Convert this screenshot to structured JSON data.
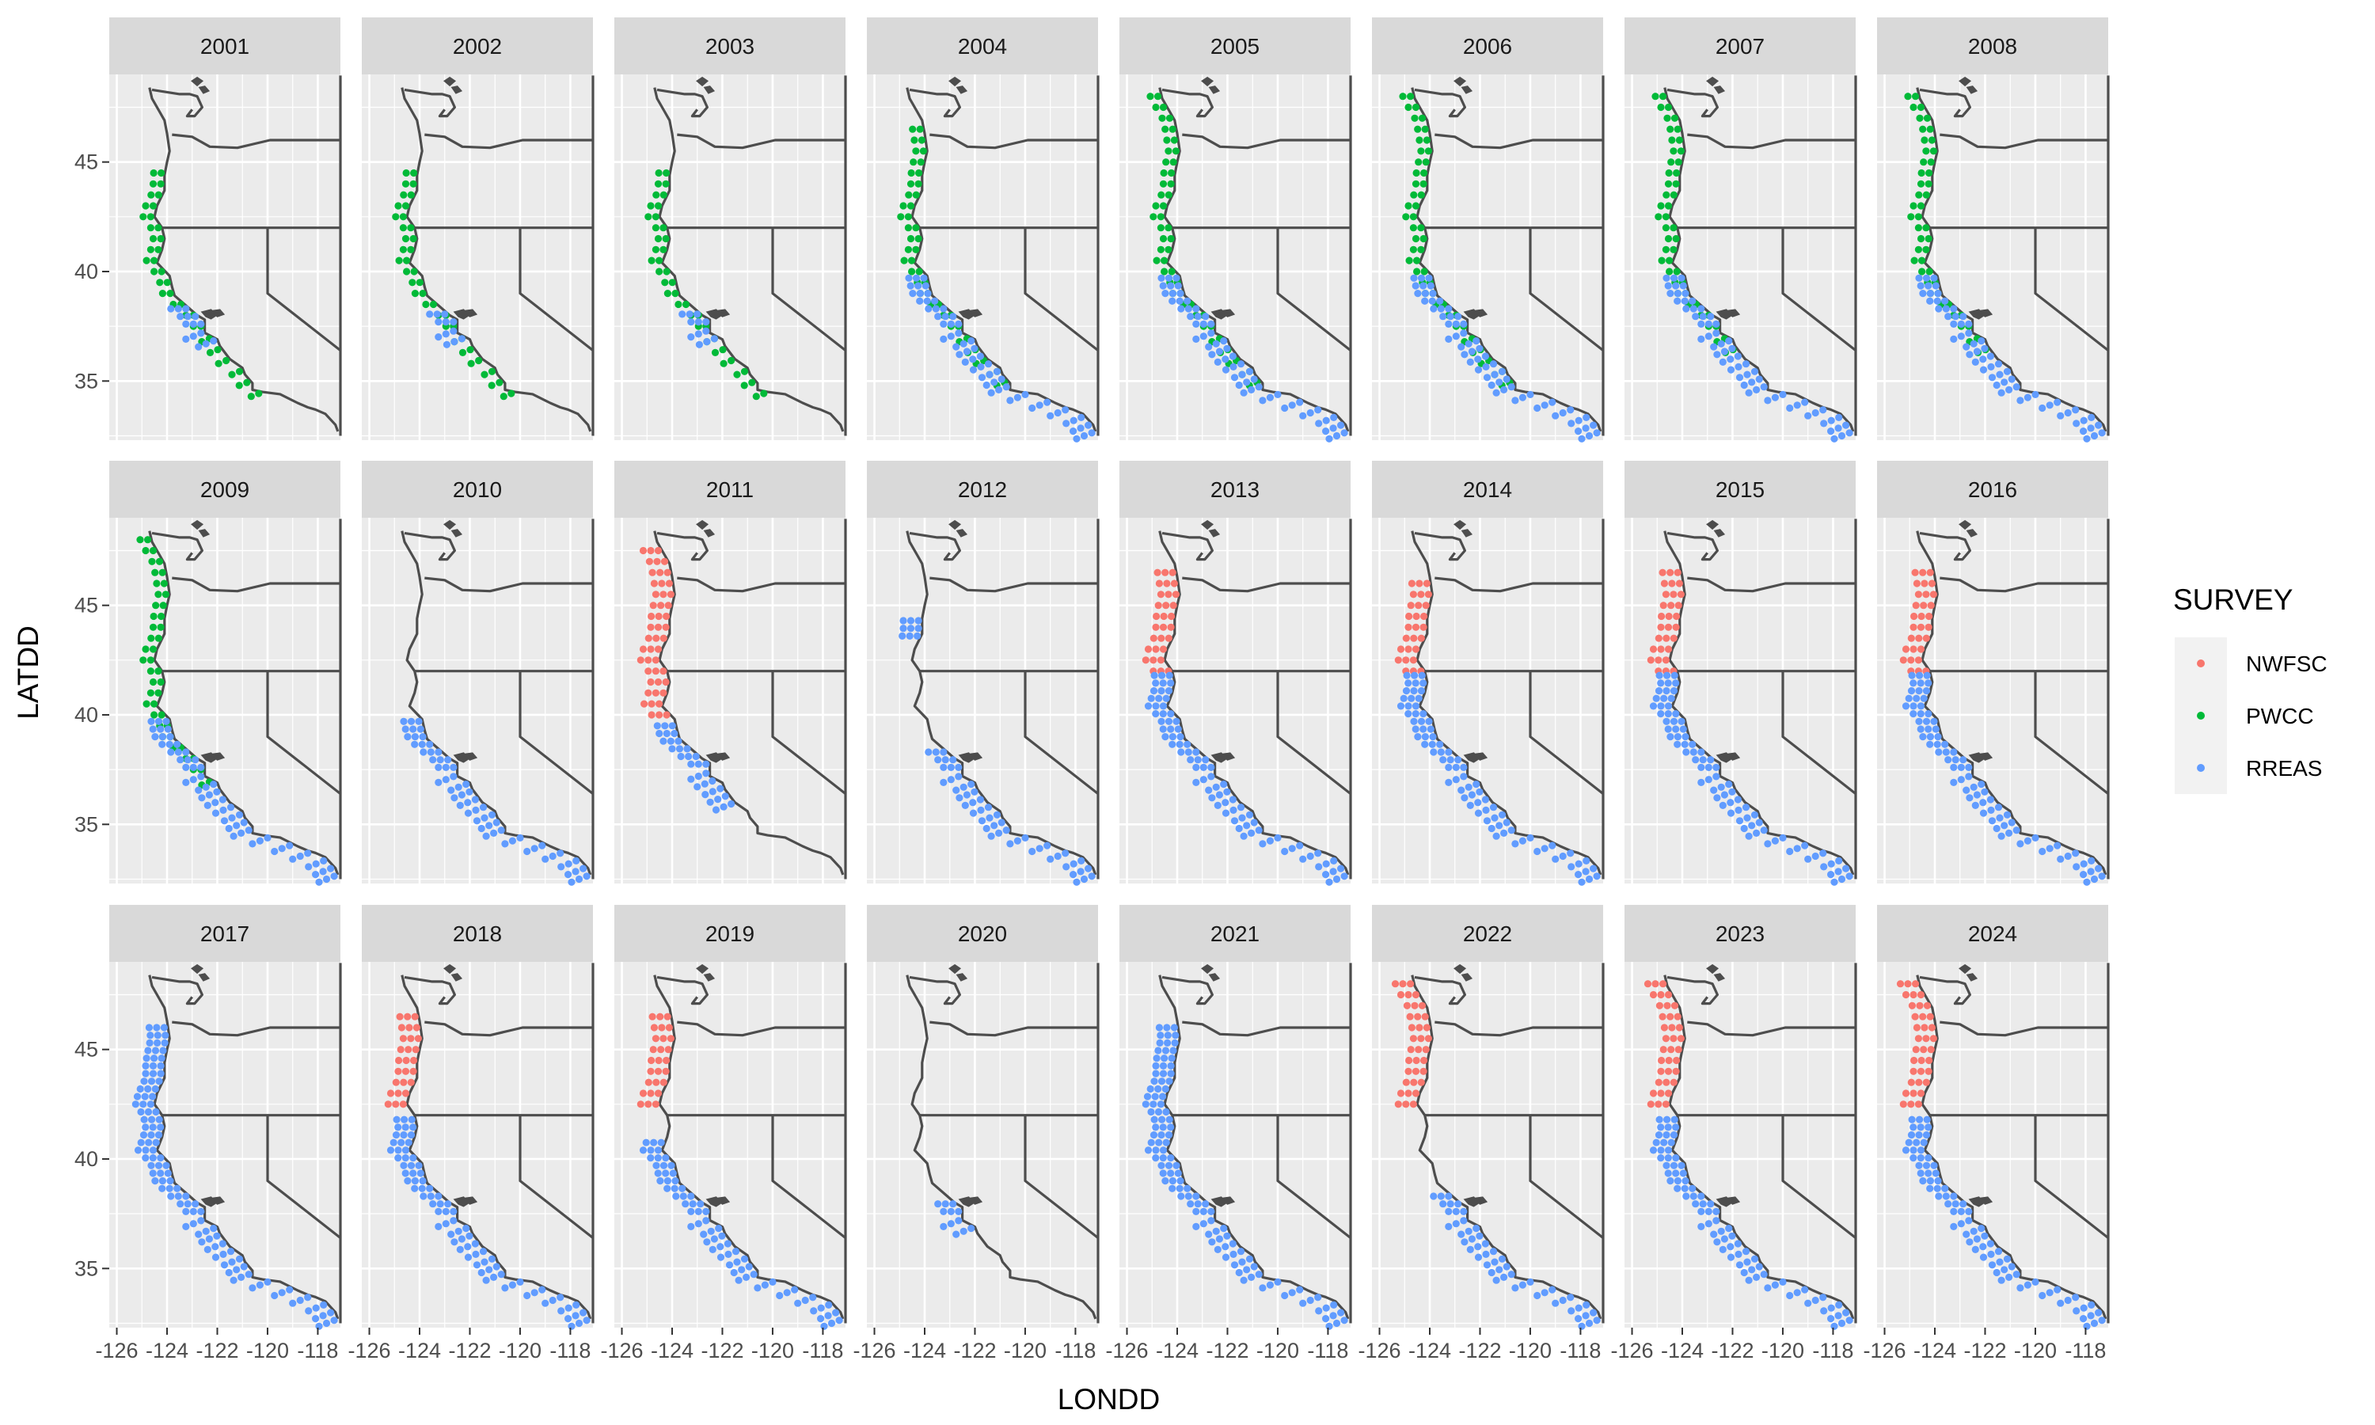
{
  "chart_data": {
    "type": "scatter",
    "facet_by": "year",
    "facets": [
      "2001",
      "2002",
      "2003",
      "2004",
      "2005",
      "2006",
      "2007",
      "2008",
      "2009",
      "2010",
      "2011",
      "2012",
      "2013",
      "2014",
      "2015",
      "2016",
      "2017",
      "2018",
      "2019",
      "2020",
      "2021",
      "2022",
      "2023",
      "2024"
    ],
    "facet_layout": {
      "columns": 8,
      "rows": 3
    },
    "xlabel": "LONDD",
    "ylabel": "LATDD",
    "xlim": [
      -126.3,
      -117.1
    ],
    "ylim": [
      32.3,
      49.0
    ],
    "x_ticks": [
      -126,
      -124,
      -122,
      -120,
      -118
    ],
    "x_tick_labels": [
      "-126",
      "-124",
      "-122",
      "-120",
      "-118"
    ],
    "y_ticks": [
      35,
      40,
      45
    ],
    "y_tick_labels": [
      "35",
      "40",
      "45"
    ],
    "grid": true,
    "legend": {
      "title": "SURVEY",
      "placement": "right",
      "entries": [
        {
          "name": "NWFSC",
          "color": "#F8766D"
        },
        {
          "name": "PWCC",
          "color": "#00BA38"
        },
        {
          "name": "RREAS",
          "color": "#619CFF"
        }
      ]
    },
    "colors": {
      "panel_bg": "#EBEBEB",
      "strip_bg": "#D9D9D9",
      "grid": "#FFFFFF",
      "coastline": "#4D4D4D",
      "islands": "#4D4D4D"
    },
    "coverage": {
      "2001": {
        "PWCC": [
          [
            34.5,
            44.7
          ]
        ],
        "RREAS": [
          [
            36.9,
            38.3
          ]
        ]
      },
      "2002": {
        "PWCC": [
          [
            34.5,
            44.7
          ]
        ],
        "RREAS": [
          [
            37.0,
            38.3
          ]
        ]
      },
      "2003": {
        "PWCC": [
          [
            34.5,
            44.7
          ]
        ],
        "RREAS": [
          [
            37.0,
            38.3
          ]
        ]
      },
      "2004": {
        "PWCC": [
          [
            35.0,
            46.6
          ]
        ],
        "RREAS": [
          [
            32.7,
            39.9
          ]
        ]
      },
      "2005": {
        "PWCC": [
          [
            35.0,
            48.2
          ]
        ],
        "RREAS": [
          [
            32.7,
            39.9
          ]
        ]
      },
      "2006": {
        "PWCC": [
          [
            35.0,
            48.2
          ]
        ],
        "RREAS": [
          [
            32.7,
            39.9
          ]
        ]
      },
      "2007": {
        "PWCC": [
          [
            36.5,
            48.2
          ]
        ],
        "RREAS": [
          [
            32.7,
            39.9
          ]
        ]
      },
      "2008": {
        "PWCC": [
          [
            36.5,
            48.2
          ]
        ],
        "RREAS": [
          [
            32.7,
            39.9
          ]
        ]
      },
      "2009": {
        "PWCC": [
          [
            37.0,
            48.2
          ]
        ],
        "RREAS": [
          [
            32.7,
            39.9
          ]
        ]
      },
      "2010": {
        "RREAS": [
          [
            32.7,
            39.9
          ]
        ]
      },
      "2011": {
        "NWFSC": [
          [
            40.0,
            47.5
          ]
        ],
        "RREAS": [
          [
            36.0,
            39.5
          ]
        ]
      },
      "2012": {
        "RREAS": [
          [
            32.7,
            38.3
          ],
          [
            43.6,
            44.5
          ]
        ]
      },
      "2013": {
        "NWFSC": [
          [
            42.0,
            46.6
          ]
        ],
        "RREAS": [
          [
            32.7,
            41.9
          ]
        ]
      },
      "2014": {
        "NWFSC": [
          [
            42.0,
            46.0
          ]
        ],
        "RREAS": [
          [
            32.7,
            41.9
          ]
        ]
      },
      "2015": {
        "NWFSC": [
          [
            42.0,
            46.6
          ]
        ],
        "RREAS": [
          [
            32.7,
            41.9
          ]
        ]
      },
      "2016": {
        "NWFSC": [
          [
            42.0,
            46.6
          ]
        ],
        "RREAS": [
          [
            32.7,
            41.9
          ]
        ]
      },
      "2017": {
        "RREAS": [
          [
            32.7,
            46.0
          ]
        ]
      },
      "2018": {
        "NWFSC": [
          [
            42.5,
            46.6
          ]
        ],
        "RREAS": [
          [
            32.7,
            41.9
          ]
        ]
      },
      "2019": {
        "NWFSC": [
          [
            42.5,
            46.6
          ]
        ],
        "RREAS": [
          [
            32.7,
            41.0
          ]
        ]
      },
      "2020": {
        "RREAS": [
          [
            36.9,
            38.0
          ]
        ]
      },
      "2021": {
        "RREAS": [
          [
            32.7,
            46.0
          ]
        ]
      },
      "2022": {
        "NWFSC": [
          [
            42.5,
            48.2
          ]
        ],
        "RREAS": [
          [
            32.7,
            38.3
          ]
        ]
      },
      "2023": {
        "NWFSC": [
          [
            42.5,
            48.2
          ]
        ],
        "RREAS": [
          [
            32.7,
            41.9
          ]
        ]
      },
      "2024": {
        "NWFSC": [
          [
            42.5,
            48.2
          ]
        ],
        "RREAS": [
          [
            32.7,
            41.9
          ]
        ]
      }
    }
  }
}
